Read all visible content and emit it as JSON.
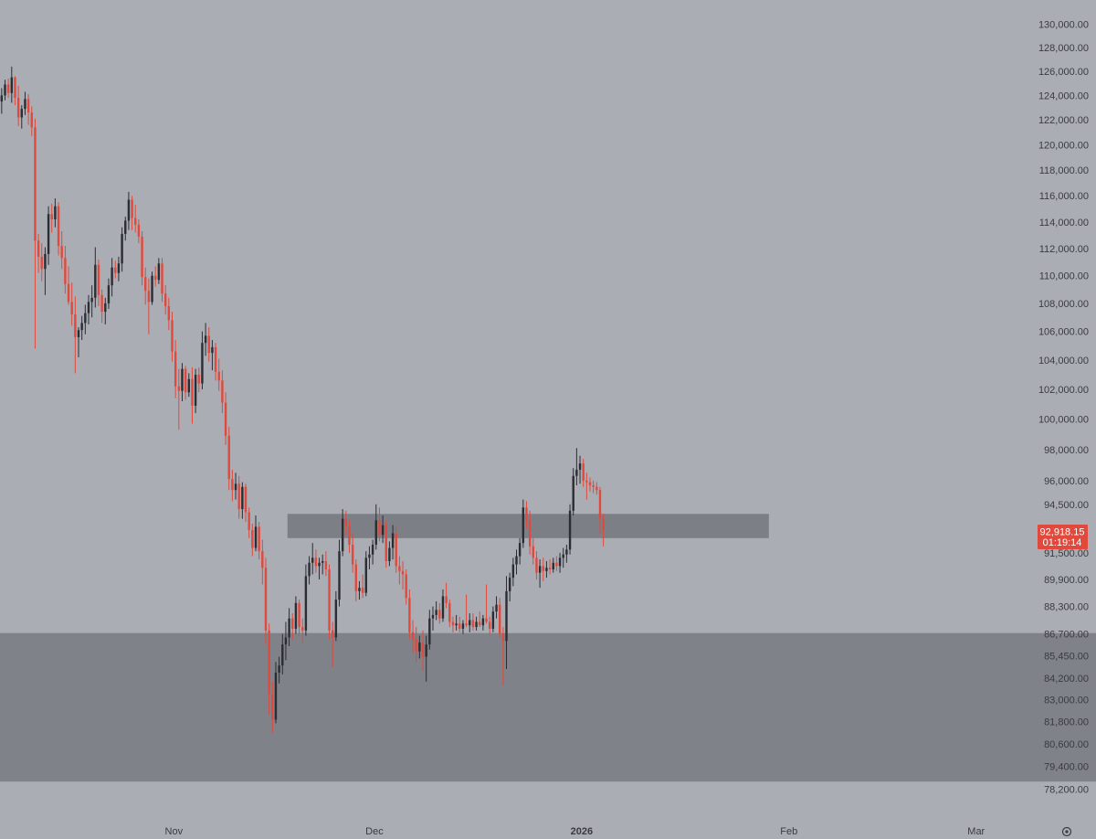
{
  "colors": {
    "background": "#abadb5",
    "bull": "#2b2d33",
    "bear": "#e0493b",
    "zone": "#74777e",
    "axis_text": "#3a3b40",
    "price_tag": "#e0493b"
  },
  "chart_data": {
    "type": "candlestick",
    "title": "",
    "xlabel": "",
    "ylabel": "",
    "y_scale": "log",
    "ylim": [
      77800,
      131000
    ],
    "yticks": [
      "130,000.00",
      "128,000.00",
      "126,000.00",
      "124,000.00",
      "122,000.00",
      "120,000.00",
      "118,000.00",
      "116,000.00",
      "114,000.00",
      "112,000.00",
      "110,000.00",
      "108,000.00",
      "106,000.00",
      "104,000.00",
      "102,000.00",
      "100,000.00",
      "98,000.00",
      "96,000.00",
      "94,500.00",
      "91,500.00",
      "89,900.00",
      "88,300.00",
      "86,700.00",
      "85,450.00",
      "84,200.00",
      "83,000.00",
      "81,800.00",
      "80,600.00",
      "79,400.00",
      "78,200.00"
    ],
    "x_range": [
      "2025-10-06",
      "2026-03-08"
    ],
    "xticks": [
      {
        "label": "Nov",
        "date": "2025-11-01",
        "bold": false
      },
      {
        "label": "Dec",
        "date": "2025-12-01",
        "bold": false
      },
      {
        "label": "2026",
        "date": "2026-01-01",
        "bold": true
      },
      {
        "label": "Feb",
        "date": "2026-02-01",
        "bold": false
      },
      {
        "label": "Mar",
        "date": "2026-03-01",
        "bold": false
      }
    ],
    "first_candle_date": "2025-10-06",
    "candles_interval": "12h",
    "candles_ohlc": [
      [
        123500,
        124600,
        122500,
        124000
      ],
      [
        124000,
        125300,
        123600,
        124900
      ],
      [
        124900,
        125400,
        123800,
        124200
      ],
      [
        124200,
        126400,
        123400,
        125500
      ],
      [
        125500,
        125600,
        123200,
        123800
      ],
      [
        123800,
        124800,
        121500,
        122200
      ],
      [
        122200,
        123200,
        121300,
        122900
      ],
      [
        122900,
        124300,
        122400,
        123700
      ],
      [
        123700,
        124100,
        121600,
        122600
      ],
      [
        122600,
        123100,
        120700,
        121400
      ],
      [
        121400,
        122100,
        104800,
        112600
      ],
      [
        112600,
        113100,
        110200,
        111400
      ],
      [
        111400,
        112400,
        109600,
        110500
      ],
      [
        110500,
        112100,
        108600,
        111600
      ],
      [
        111600,
        115200,
        110800,
        114600
      ],
      [
        114600,
        115400,
        113200,
        114200
      ],
      [
        114200,
        115800,
        113600,
        115200
      ],
      [
        115200,
        115500,
        111500,
        112200
      ],
      [
        112200,
        113300,
        110500,
        111300
      ],
      [
        111300,
        112200,
        108700,
        109400
      ],
      [
        109400,
        110700,
        107900,
        108100
      ],
      [
        108100,
        109500,
        106400,
        107200
      ],
      [
        107200,
        108500,
        103100,
        105600
      ],
      [
        105600,
        106300,
        104200,
        106100
      ],
      [
        106100,
        107100,
        105400,
        106600
      ],
      [
        106600,
        107900,
        105800,
        107300
      ],
      [
        107300,
        108600,
        106500,
        108100
      ],
      [
        108100,
        109300,
        107000,
        108400
      ],
      [
        108400,
        112100,
        107700,
        110800
      ],
      [
        110800,
        111200,
        107800,
        108600
      ],
      [
        108600,
        109000,
        106600,
        107400
      ],
      [
        107400,
        108400,
        106500,
        108000
      ],
      [
        108000,
        109800,
        107600,
        109300
      ],
      [
        109300,
        111300,
        108500,
        110600
      ],
      [
        110600,
        111100,
        109800,
        110200
      ],
      [
        110200,
        111400,
        109600,
        110900
      ],
      [
        110900,
        113600,
        110300,
        113100
      ],
      [
        113100,
        114400,
        112600,
        114100
      ],
      [
        114100,
        116300,
        113400,
        115700
      ],
      [
        115700,
        116000,
        113400,
        114300
      ],
      [
        114300,
        115300,
        113200,
        113800
      ],
      [
        113800,
        114200,
        112400,
        112900
      ],
      [
        112900,
        113300,
        109300,
        109900
      ],
      [
        109900,
        110600,
        107900,
        108900
      ],
      [
        108900,
        109800,
        105800,
        108100
      ],
      [
        108100,
        110300,
        107900,
        110000
      ],
      [
        110000,
        110700,
        109200,
        109700
      ],
      [
        109700,
        111300,
        109400,
        110900
      ],
      [
        110900,
        111300,
        108100,
        108700
      ],
      [
        108700,
        109300,
        107200,
        107800
      ],
      [
        107800,
        108400,
        106100,
        106800
      ],
      [
        106800,
        107400,
        103900,
        104600
      ],
      [
        104600,
        105400,
        101400,
        102200
      ],
      [
        102200,
        103400,
        99300,
        101900
      ],
      [
        101900,
        103800,
        101200,
        103400
      ],
      [
        103400,
        103600,
        101300,
        101800
      ],
      [
        101800,
        103100,
        101500,
        102700
      ],
      [
        102700,
        103500,
        99700,
        100900
      ],
      [
        100900,
        103400,
        100400,
        103000
      ],
      [
        103000,
        103500,
        101800,
        102400
      ],
      [
        102400,
        106000,
        102000,
        105200
      ],
      [
        105200,
        106600,
        104300,
        105700
      ],
      [
        105700,
        106300,
        103900,
        104500
      ],
      [
        104500,
        105400,
        103300,
        104900
      ],
      [
        104900,
        105200,
        102600,
        103200
      ],
      [
        103200,
        104100,
        101900,
        102600
      ],
      [
        102600,
        103300,
        100400,
        101100
      ],
      [
        101100,
        101800,
        98300,
        98900
      ],
      [
        98900,
        99500,
        95400,
        96100
      ],
      [
        96100,
        96700,
        94700,
        95400
      ],
      [
        95400,
        96500,
        94800,
        95800
      ],
      [
        95800,
        96300,
        93600,
        94200
      ],
      [
        94200,
        95900,
        93600,
        95600
      ],
      [
        95600,
        95800,
        93400,
        94000
      ],
      [
        94000,
        94300,
        92400,
        92900
      ],
      [
        92900,
        93300,
        91300,
        91800
      ],
      [
        91800,
        93800,
        91600,
        93100
      ],
      [
        93100,
        93400,
        91100,
        91600
      ],
      [
        91600,
        92300,
        89600,
        90600
      ],
      [
        90600,
        91200,
        86100,
        86900
      ],
      [
        86900,
        87300,
        82200,
        83300
      ],
      [
        83300,
        84000,
        81200,
        81900
      ],
      [
        81900,
        85100,
        81700,
        84500
      ],
      [
        84500,
        85400,
        83900,
        84900
      ],
      [
        84900,
        86700,
        84400,
        86100
      ],
      [
        86100,
        87400,
        85200,
        86500
      ],
      [
        86500,
        88200,
        86000,
        87600
      ],
      [
        87600,
        87900,
        86400,
        87000
      ],
      [
        87000,
        88900,
        86700,
        88500
      ],
      [
        88500,
        88700,
        86600,
        87100
      ],
      [
        87100,
        87600,
        86200,
        86900
      ],
      [
        86900,
        90800,
        86600,
        90100
      ],
      [
        90100,
        91300,
        89600,
        90900
      ],
      [
        90900,
        92100,
        90200,
        91200
      ],
      [
        91200,
        91700,
        90300,
        90700
      ],
      [
        90700,
        91200,
        89900,
        90900
      ],
      [
        90900,
        91400,
        90200,
        91000
      ],
      [
        91000,
        91600,
        90100,
        90500
      ],
      [
        90500,
        90800,
        86400,
        86900
      ],
      [
        86900,
        87400,
        84800,
        86500
      ],
      [
        86500,
        89200,
        86300,
        88700
      ],
      [
        88700,
        92300,
        88300,
        91600
      ],
      [
        91600,
        94200,
        91300,
        93600
      ],
      [
        93600,
        94100,
        92600,
        93100
      ],
      [
        93100,
        93500,
        91500,
        92000
      ],
      [
        92000,
        92700,
        90300,
        90800
      ],
      [
        90800,
        91100,
        88600,
        89200
      ],
      [
        89200,
        89800,
        88700,
        89400
      ],
      [
        89400,
        90200,
        88800,
        89100
      ],
      [
        89100,
        91600,
        88900,
        91200
      ],
      [
        91200,
        91900,
        90500,
        91400
      ],
      [
        91400,
        92300,
        90800,
        92000
      ],
      [
        92000,
        94500,
        91700,
        93500
      ],
      [
        93500,
        94300,
        92200,
        92600
      ],
      [
        92600,
        93800,
        92100,
        93200
      ],
      [
        93200,
        93500,
        90600,
        91000
      ],
      [
        91000,
        92200,
        90700,
        91800
      ],
      [
        91800,
        93200,
        91100,
        92700
      ],
      [
        92700,
        93100,
        90300,
        90700
      ],
      [
        90700,
        91300,
        89600,
        90400
      ],
      [
        90400,
        91000,
        89300,
        90200
      ],
      [
        90200,
        90500,
        88400,
        88800
      ],
      [
        88800,
        89300,
        86400,
        86800
      ],
      [
        86800,
        87500,
        85600,
        86400
      ],
      [
        86400,
        87100,
        85100,
        85700
      ],
      [
        85700,
        86600,
        85300,
        86200
      ],
      [
        86200,
        86900,
        84600,
        85400
      ],
      [
        85400,
        86600,
        84000,
        86100
      ],
      [
        86100,
        88100,
        85800,
        87600
      ],
      [
        87600,
        88300,
        86900,
        87800
      ],
      [
        87800,
        88600,
        87500,
        88100
      ],
      [
        88100,
        88500,
        87300,
        87600
      ],
      [
        87600,
        89300,
        87400,
        88900
      ],
      [
        88900,
        89700,
        88200,
        88500
      ],
      [
        88500,
        88700,
        87100,
        87400
      ],
      [
        87400,
        87700,
        86800,
        87200
      ],
      [
        87200,
        87800,
        86900,
        87300
      ],
      [
        87300,
        87700,
        86800,
        87000
      ],
      [
        87000,
        87500,
        86700,
        87300
      ],
      [
        87300,
        89000,
        87100,
        87200
      ],
      [
        87200,
        87900,
        86800,
        87500
      ],
      [
        87500,
        87900,
        86900,
        87100
      ],
      [
        87100,
        87700,
        86900,
        87400
      ],
      [
        87400,
        88000,
        87100,
        87200
      ],
      [
        87200,
        87800,
        86900,
        87600
      ],
      [
        87600,
        89600,
        87300,
        87400
      ],
      [
        87400,
        87700,
        86700,
        87000
      ],
      [
        87000,
        88300,
        86800,
        88000
      ],
      [
        88000,
        88900,
        87600,
        88400
      ],
      [
        88400,
        88800,
        86500,
        86700
      ],
      [
        86700,
        87100,
        83800,
        86300
      ],
      [
        86300,
        90100,
        84700,
        89200
      ],
      [
        89200,
        90300,
        88600,
        90000
      ],
      [
        90000,
        91200,
        89500,
        90800
      ],
      [
        90800,
        91700,
        90200,
        91300
      ],
      [
        91300,
        92400,
        90800,
        92100
      ],
      [
        92100,
        94800,
        91800,
        94300
      ],
      [
        94300,
        94700,
        93000,
        93500
      ],
      [
        93500,
        94100,
        91400,
        91900
      ],
      [
        91900,
        92400,
        90800,
        91200
      ],
      [
        91200,
        91600,
        89900,
        90300
      ],
      [
        90300,
        91100,
        89400,
        90700
      ],
      [
        90700,
        91200,
        89800,
        90400
      ],
      [
        90400,
        91000,
        90000,
        90600
      ],
      [
        90600,
        91100,
        90200,
        90500
      ],
      [
        90500,
        91200,
        90300,
        90900
      ],
      [
        90900,
        91300,
        90400,
        90700
      ],
      [
        90700,
        91500,
        90300,
        91200
      ],
      [
        91200,
        91800,
        90600,
        91400
      ],
      [
        91400,
        92000,
        90900,
        91700
      ],
      [
        91700,
        94500,
        91400,
        94100
      ],
      [
        94100,
        96800,
        93800,
        96300
      ],
      [
        96300,
        98100,
        95700,
        96700
      ],
      [
        96700,
        97600,
        95800,
        97100
      ],
      [
        97100,
        97400,
        95600,
        96000
      ],
      [
        96000,
        96500,
        94800,
        95900
      ],
      [
        95900,
        96200,
        95300,
        95700
      ],
      [
        95700,
        96000,
        95200,
        95600
      ],
      [
        95600,
        95900,
        95100,
        95400
      ],
      [
        95400,
        95600,
        92700,
        93600
      ],
      [
        93600,
        93900,
        91900,
        92918
      ]
    ],
    "zones": [
      {
        "name": "resistance",
        "from": "2025-11-18",
        "to": "2026-01-29",
        "low": 92400,
        "high": 93900
      },
      {
        "name": "support",
        "from": "2025-10-06",
        "to": "2026-03-08",
        "low": 78600,
        "high": 86750
      }
    ],
    "last_price": "92,918.15",
    "countdown": "01:19:14"
  }
}
